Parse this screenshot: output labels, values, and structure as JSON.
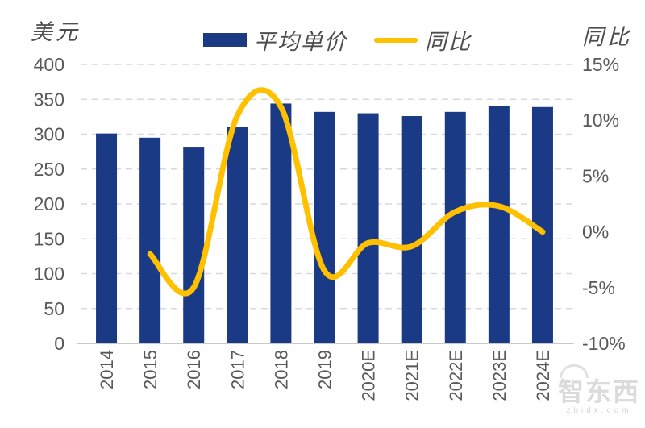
{
  "axis_left": {
    "title": "美元",
    "ticks": [
      "400",
      "350",
      "300",
      "250",
      "200",
      "150",
      "100",
      "50",
      "0"
    ]
  },
  "axis_right": {
    "title": "同比",
    "ticks": [
      "15%",
      "10%",
      "5%",
      "0%",
      "-5%",
      "-10%"
    ]
  },
  "legend": {
    "bar_label": "平均单价",
    "line_label": "同比"
  },
  "chart_data": {
    "type": "bar+line combo",
    "categories": [
      "2014",
      "2015",
      "2016",
      "2017",
      "2018",
      "2019",
      "2020E",
      "2021E",
      "2022E",
      "2023E",
      "2024E"
    ],
    "series": [
      {
        "name": "平均单价",
        "type": "bar",
        "axis": "left",
        "unit": "美元",
        "values": [
          301,
          295,
          282,
          311,
          344,
          332,
          330,
          326,
          332,
          340,
          339
        ]
      },
      {
        "name": "同比",
        "type": "line",
        "axis": "right",
        "unit": "%",
        "values": [
          null,
          -2,
          -5,
          10.4,
          11.2,
          -3.5,
          -1,
          -1.3,
          1.8,
          2.3,
          0
        ]
      }
    ],
    "ylim_left": [
      0,
      400
    ],
    "ylim_right": [
      -10,
      15
    ],
    "grid": "horizontal dashed",
    "legend_position": "top center"
  },
  "colors": {
    "bar": "#1a3a85",
    "line": "#ffc000",
    "gridline": "#d9d9d9",
    "axis_line": "#c9c9c9",
    "tick_text": "#595959"
  },
  "watermark": {
    "text": "智东西",
    "subtext": "zhidx.com"
  }
}
